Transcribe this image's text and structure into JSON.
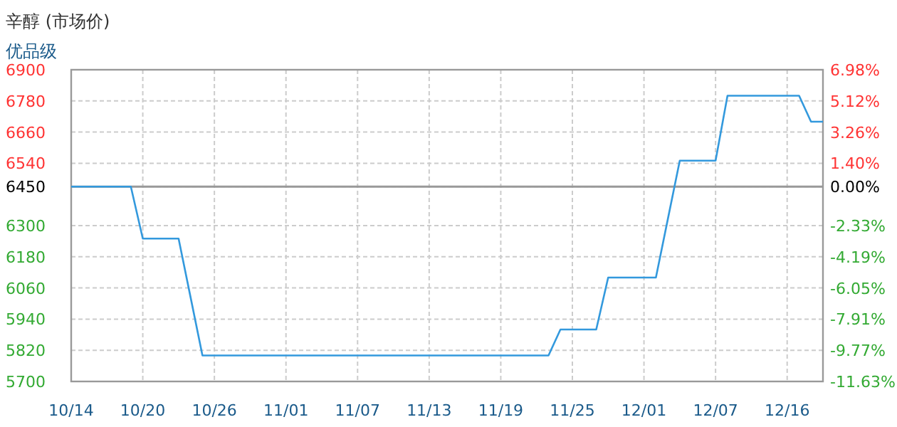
{
  "chart_data": {
    "type": "line",
    "title": "辛醇 (市场价)",
    "subtitle": "优品级",
    "categories": [
      "10/14",
      null,
      null,
      null,
      null,
      null,
      "10/20",
      null,
      null,
      null,
      null,
      null,
      "10/26",
      null,
      null,
      null,
      null,
      null,
      "11/01",
      null,
      null,
      null,
      null,
      null,
      "11/07",
      null,
      null,
      null,
      null,
      null,
      "11/13",
      null,
      null,
      null,
      null,
      null,
      "11/19",
      null,
      null,
      null,
      null,
      null,
      "11/25",
      null,
      null,
      null,
      null,
      null,
      "12/01",
      null,
      null,
      null,
      null,
      null,
      "12/07",
      null,
      null,
      null,
      null,
      null,
      "12/16",
      null,
      null,
      null
    ],
    "series": [
      {
        "color": "#3399dd",
        "values": [
          6450,
          6450,
          6450,
          6450,
          6450,
          6450,
          6250,
          6250,
          6250,
          6250,
          6025,
          5800,
          5800,
          5800,
          5800,
          5800,
          5800,
          5800,
          5800,
          5800,
          5800,
          5800,
          5800,
          5800,
          5800,
          5800,
          5800,
          5800,
          5800,
          5800,
          5800,
          5800,
          5800,
          5800,
          5800,
          5800,
          5800,
          5800,
          5800,
          5800,
          5800,
          5900,
          5900,
          5900,
          5900,
          6100,
          6100,
          6100,
          6100,
          6100,
          6325,
          6550,
          6550,
          6550,
          6550,
          6800,
          6800,
          6800,
          6800,
          6800,
          6800,
          6800,
          6700,
          6700
        ]
      }
    ],
    "ylim": [
      5700,
      6900
    ],
    "yticks": [
      5700,
      5820,
      5940,
      6060,
      6180,
      6300,
      6450,
      6540,
      6660,
      6780,
      6900
    ],
    "y2lim": [
      -11.63,
      6.98
    ],
    "y2ticks": [
      {
        "value": -11.63,
        "label": "-11.63%"
      },
      {
        "value": -9.77,
        "label": "-9.77%"
      },
      {
        "value": -7.91,
        "label": "-7.91%"
      },
      {
        "value": -6.05,
        "label": "-6.05%"
      },
      {
        "value": -4.19,
        "label": "-4.19%"
      },
      {
        "value": -2.33,
        "label": "-2.33%"
      },
      {
        "value": 0,
        "label": "0.00%"
      },
      {
        "value": 1.4,
        "label": "1.40%"
      },
      {
        "value": 3.26,
        "label": "3.26%"
      },
      {
        "value": 5.12,
        "label": "5.12%"
      },
      {
        "value": 6.98,
        "label": "6.98%"
      }
    ],
    "ref_lines": [
      {
        "axis": "y",
        "value": 6450,
        "color": "#999999"
      }
    ],
    "grid": true,
    "marker": "none",
    "line_style": "solid"
  }
}
